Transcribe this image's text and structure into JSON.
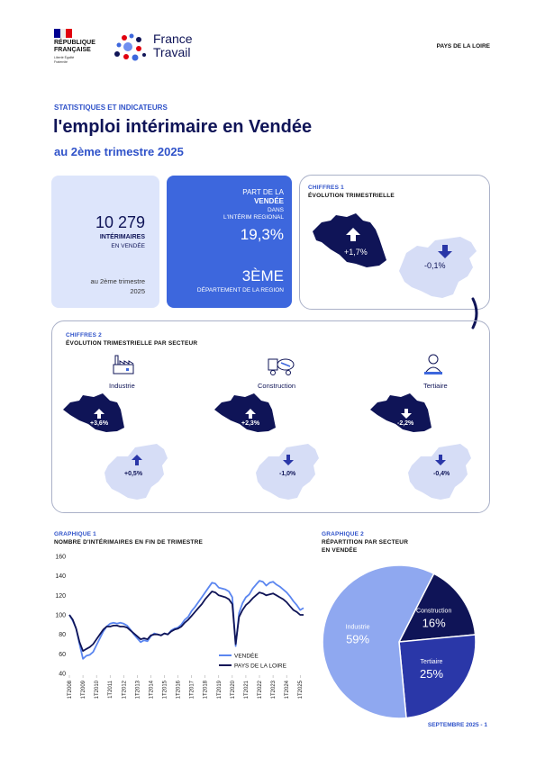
{
  "header": {
    "republique_line1": "RÉPUBLIQUE",
    "republique_line2": "FRANÇAISE",
    "motto": "Liberté Égalité Fraternité",
    "brand_line1": "France",
    "brand_line2": "Travail",
    "region": "PAYS DE LA LOIRE"
  },
  "title": {
    "kicker": "STATISTIQUES ET INDICATEURS",
    "main": "l'emploi intérimaire en Vendée",
    "sub": "au 2ème trimestre 2025"
  },
  "kpi1": {
    "value": "10 279",
    "label_line1": "INTÉRIMAIRES",
    "label_line2": "EN VENDÉE",
    "period_line1": "au 2ème trimestre",
    "period_line2": "2025"
  },
  "kpi2": {
    "line1": "PART DE LA",
    "line2": "VENDÉE",
    "line3": "DANS",
    "line4": "L'INTÉRIM REGIONAL",
    "value": "19,3%",
    "rank": "3ÈME",
    "rank_label": "DÉPARTEMENT DE LA REGION"
  },
  "chiffres1": {
    "label": "CHIFFRES 1",
    "title": "ÉVOLUTION TRIMESTRIELLE",
    "vendee_value": "+1,7%",
    "region_value": "-0,1%"
  },
  "chiffres2": {
    "label": "CHIFFRES 2",
    "title": "ÉVOLUTION TRIMESTRIELLE PAR SECTEUR",
    "sectors": [
      {
        "name": "Industrie",
        "icon": "factory-icon",
        "vendee": "+3,6%",
        "region": "+0,5%"
      },
      {
        "name": "Construction",
        "icon": "cement-truck-icon",
        "vendee": "+2,3%",
        "region": "-1,0%"
      },
      {
        "name": "Tertiaire",
        "icon": "person-desk-icon",
        "vendee": "-2,2%",
        "region": "-0,4%"
      }
    ]
  },
  "graph1": {
    "label": "GRAPHIQUE 1",
    "title": "NOMBRE D'INTÉRIMAIRES EN FIN DE TRIMESTRE"
  },
  "graph2": {
    "label": "GRAPHIQUE 2",
    "title_line1": "RÉPARTITION PAR SECTEUR",
    "title_line2": "EN VENDÉE"
  },
  "footer": {
    "text": "SEPTEMBRE 2025 - 1"
  },
  "colors": {
    "navy": "#0f1457",
    "blue": "#2f52c9",
    "light_blue": "#dde5fb",
    "vendee_line": "#5b86f0",
    "region_line": "#0f1457",
    "industrie": "#8fa8f0",
    "construction": "#0f1457",
    "tertiaire": "#2a37a8"
  },
  "chart_data": [
    {
      "type": "line",
      "title": "NOMBRE D'INTÉRIMAIRES EN FIN DE TRIMESTRE",
      "ylim": [
        40,
        160
      ],
      "yticks": [
        40,
        60,
        80,
        100,
        120,
        140,
        160
      ],
      "x": [
        "1T2008",
        "2T2008",
        "3T2008",
        "4T2008",
        "1T2009",
        "2T2009",
        "3T2009",
        "4T2009",
        "1T2010",
        "2T2010",
        "3T2010",
        "4T2010",
        "1T2011",
        "2T2011",
        "3T2011",
        "4T2011",
        "1T2012",
        "2T2012",
        "3T2012",
        "4T2012",
        "1T2013",
        "2T2013",
        "3T2013",
        "4T2013",
        "1T2014",
        "2T2014",
        "3T2014",
        "4T2014",
        "1T2015",
        "2T2015",
        "3T2015",
        "4T2015",
        "1T2016",
        "2T2016",
        "3T2016",
        "4T2016",
        "1T2017",
        "2T2017",
        "3T2017",
        "4T2017",
        "1T2018",
        "2T2018",
        "3T2018",
        "4T2018",
        "1T2019",
        "2T2019",
        "3T2019",
        "4T2019",
        "1T2020",
        "2T2020",
        "3T2020",
        "4T2020",
        "1T2021",
        "2T2021",
        "3T2021",
        "4T2021",
        "1T2022",
        "2T2022",
        "3T2022",
        "4T2022",
        "1T2023",
        "2T2023",
        "3T2023",
        "4T2023",
        "1T2024",
        "2T2024",
        "3T2024",
        "4T2024",
        "1T2025",
        "2T2025"
      ],
      "xtick_labels": [
        "1T2008",
        "1T2009",
        "1T2010",
        "1T2011",
        "1T2012",
        "1T2013",
        "1T2014",
        "1T2015",
        "1T2016",
        "1T2017",
        "1T2018",
        "1T2019",
        "1T2020",
        "1T2021",
        "1T2022",
        "1T2023",
        "1T2024",
        "1T2025"
      ],
      "series": [
        {
          "name": "VENDÉE",
          "values": [
            100,
            94,
            86,
            70,
            55,
            58,
            59,
            62,
            69,
            76,
            83,
            88,
            91,
            92,
            91,
            92,
            91,
            89,
            85,
            80,
            76,
            72,
            74,
            73,
            78,
            81,
            80,
            79,
            81,
            80,
            84,
            86,
            87,
            90,
            95,
            98,
            104,
            108,
            113,
            118,
            123,
            128,
            133,
            132,
            128,
            127,
            126,
            124,
            118,
            68,
            102,
            112,
            118,
            121,
            127,
            131,
            135,
            134,
            130,
            133,
            134,
            131,
            129,
            126,
            123,
            119,
            114,
            110,
            105,
            107
          ]
        },
        {
          "name": "PAYS DE LA LOIRE",
          "values": [
            100,
            95,
            86,
            72,
            63,
            65,
            67,
            70,
            75,
            80,
            85,
            88,
            88,
            89,
            89,
            88,
            88,
            87,
            84,
            81,
            78,
            75,
            76,
            75,
            79,
            80,
            80,
            79,
            81,
            80,
            83,
            85,
            86,
            88,
            92,
            95,
            99,
            103,
            107,
            111,
            116,
            120,
            124,
            123,
            120,
            119,
            118,
            116,
            111,
            70,
            98,
            105,
            110,
            113,
            117,
            120,
            123,
            122,
            120,
            121,
            122,
            120,
            118,
            116,
            113,
            109,
            105,
            103,
            100,
            100
          ]
        }
      ]
    },
    {
      "type": "pie",
      "title": "RÉPARTITION PAR SECTEUR EN VENDÉE",
      "categories": [
        "Industrie",
        "Construction",
        "Tertiaire"
      ],
      "values": [
        59,
        16,
        25
      ],
      "labels": [
        "59%",
        "16%",
        "25%"
      ]
    }
  ]
}
